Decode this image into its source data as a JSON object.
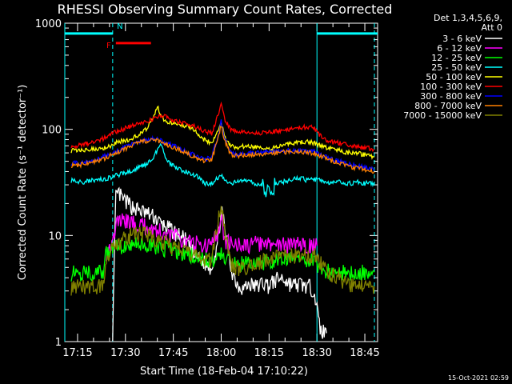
{
  "chart_data": {
    "type": "line",
    "title": "RHESSI Observing Summary Count Rates, Corrected",
    "xlabel": "Start Time (18-Feb-04 17:10:22)",
    "ylabel": "Corrected Count Rate (s⁻¹ detector⁻¹)",
    "yscale": "log",
    "ylim": [
      1,
      1000
    ],
    "xlim_min": [
      -2,
      48
    ],
    "y_ticks": [
      {
        "value": 1,
        "label": "1"
      },
      {
        "value": 10,
        "label": "10"
      },
      {
        "value": 100,
        "label": "100"
      },
      {
        "value": 1000,
        "label": "1000"
      }
    ],
    "x_ticks": [
      {
        "value": 2,
        "label": "17:15"
      },
      {
        "value": 17,
        "label": "17:30"
      },
      {
        "value": 32,
        "label": "17:45"
      },
      {
        "value": 47,
        "label": "18:00"
      },
      {
        "value": 62,
        "label": "18:15"
      },
      {
        "value": 77,
        "label": "18:30"
      },
      {
        "value": 92,
        "label": "18:45"
      }
    ],
    "x_range": [
      -2,
      96
    ],
    "legend_header": [
      "Det 1,3,4,5,6,9,",
      "Att 0"
    ],
    "legend_position": "right",
    "timestamp": "15-Oct-2021 02:59",
    "status_bars": [
      {
        "label": "",
        "start": -2,
        "end": 13,
        "level": 800,
        "color": "#00ffff"
      },
      {
        "label": "N",
        "start": 13,
        "end": 13,
        "level": 800,
        "color": "#00ffff"
      },
      {
        "label": "",
        "start": 77,
        "end": 96,
        "level": 800,
        "color": "#00ffff"
      },
      {
        "label": "F",
        "start": 14,
        "end": 25,
        "level": 650,
        "color": "#ff0000"
      }
    ],
    "vlines": [
      {
        "x": -2,
        "style": "solid"
      },
      {
        "x": 13,
        "style": "dashed"
      },
      {
        "x": 77,
        "style": "solid"
      },
      {
        "x": 95,
        "style": "dashed"
      }
    ],
    "series": [
      {
        "name": "3 - 6 keV",
        "color": "#ffffff",
        "x": [
          13,
          14,
          15,
          16,
          18,
          20,
          22,
          24,
          26,
          28,
          30,
          32,
          34,
          36,
          38,
          40,
          42,
          44,
          46,
          47,
          48,
          50,
          52,
          54,
          56,
          58,
          60,
          62,
          64,
          66,
          68,
          70,
          72,
          74,
          76,
          78,
          80
        ],
        "y": [
          1.2,
          23,
          25,
          22,
          20,
          18,
          17,
          16,
          15,
          13,
          12,
          11,
          10,
          9,
          7,
          6,
          5.5,
          5,
          9,
          18,
          12,
          5,
          3.5,
          3.2,
          3.5,
          3.3,
          3.6,
          3.4,
          3.8,
          4,
          3.6,
          3.4,
          3.5,
          3.3,
          3.2,
          1.3,
          1.2
        ]
      },
      {
        "name": "6 - 12 keV",
        "color": "#ff00ff",
        "x": [
          11,
          12,
          13,
          14,
          16,
          18,
          20,
          22,
          24,
          26,
          28,
          30,
          32,
          34,
          36,
          38,
          40,
          42,
          44,
          46,
          47,
          48,
          50,
          52,
          54,
          56,
          58,
          60,
          62,
          64,
          66,
          68,
          70,
          72,
          74,
          76,
          77
        ],
        "y": [
          7,
          8,
          8.5,
          13,
          14,
          13.5,
          13,
          12.5,
          12,
          11.5,
          11,
          10.5,
          10,
          9.5,
          9,
          8.5,
          8.5,
          8,
          8,
          11,
          16,
          9,
          8.5,
          8.3,
          8.2,
          8,
          8.5,
          8.3,
          8.1,
          8.6,
          8.3,
          8,
          8.4,
          8.2,
          8.1,
          8,
          8
        ]
      },
      {
        "name": "12 - 25 keV",
        "color": "#00ff00",
        "x": [
          0,
          2,
          4,
          6,
          8,
          10,
          11,
          12,
          13,
          14,
          16,
          18,
          20,
          22,
          24,
          26,
          28,
          30,
          32,
          34,
          36,
          38,
          40,
          42,
          44,
          46,
          47,
          48,
          50,
          52,
          54,
          56,
          58,
          60,
          62,
          64,
          66,
          68,
          70,
          72,
          74,
          76,
          77,
          79,
          81,
          84,
          86,
          88,
          90,
          92,
          94,
          95
        ],
        "y": [
          4.5,
          4.5,
          4.5,
          4.5,
          4.5,
          4.5,
          7,
          7.2,
          7.5,
          8,
          8,
          8.2,
          8.3,
          8.2,
          8,
          7.8,
          7.6,
          7.5,
          7.3,
          7,
          6.8,
          6.5,
          6.2,
          6,
          5.8,
          6,
          7,
          6,
          5.5,
          5.5,
          5.5,
          5.5,
          5.6,
          5.7,
          5.6,
          6,
          6,
          6.2,
          6.3,
          6.1,
          6,
          6,
          4.8,
          4.7,
          4.6,
          4.5,
          4.5,
          4.5,
          4.5,
          4.5,
          4.5,
          4.5
        ]
      },
      {
        "name": "25 - 50 keV",
        "color": "#00ffff",
        "x": [
          0,
          2,
          4,
          6,
          8,
          10,
          12,
          14,
          16,
          18,
          20,
          22,
          24,
          26,
          27,
          28,
          29,
          30,
          32,
          34,
          36,
          38,
          40,
          42,
          44,
          46,
          47,
          48,
          50,
          52,
          54,
          56,
          58,
          60,
          62,
          64,
          66,
          68,
          70,
          72,
          74,
          76,
          78,
          80,
          82,
          84,
          86,
          88,
          90,
          92,
          94,
          95
        ],
        "y": [
          33,
          32,
          32,
          33,
          33,
          34,
          35,
          37,
          38,
          40,
          42,
          45,
          48,
          55,
          65,
          72,
          60,
          50,
          45,
          42,
          40,
          38,
          35,
          31,
          31,
          35,
          38,
          33,
          31,
          32,
          33,
          32,
          30,
          29,
          27,
          30,
          32,
          33,
          34,
          35,
          33,
          34,
          33,
          32,
          31,
          32,
          31,
          31,
          32,
          31,
          31,
          31
        ]
      },
      {
        "name": "50 - 100 keV",
        "color": "#ffff00",
        "x": [
          0,
          2,
          4,
          6,
          8,
          10,
          12,
          14,
          16,
          18,
          20,
          22,
          24,
          26,
          27,
          28,
          29,
          30,
          32,
          34,
          36,
          38,
          40,
          42,
          44,
          46,
          47,
          48,
          50,
          52,
          54,
          56,
          58,
          60,
          62,
          64,
          66,
          68,
          70,
          72,
          74,
          76,
          78,
          80,
          82,
          84,
          86,
          88,
          90,
          92,
          94,
          95
        ],
        "y": [
          63,
          63,
          64,
          65,
          66,
          67,
          70,
          75,
          78,
          80,
          85,
          92,
          105,
          135,
          165,
          140,
          125,
          118,
          115,
          112,
          108,
          104,
          90,
          78,
          75,
          98,
          118,
          85,
          70,
          68,
          69,
          70,
          68,
          66,
          65,
          67,
          70,
          72,
          74,
          76,
          76,
          75,
          70,
          67,
          65,
          63,
          61,
          60,
          59,
          58,
          56,
          55
        ]
      },
      {
        "name": "100 - 300 keV",
        "color": "#ff0000",
        "x": [
          0,
          2,
          4,
          6,
          8,
          10,
          12,
          14,
          16,
          18,
          20,
          22,
          24,
          26,
          28,
          30,
          32,
          34,
          36,
          38,
          40,
          42,
          44,
          46,
          47,
          48,
          50,
          52,
          54,
          56,
          58,
          60,
          62,
          64,
          66,
          68,
          70,
          72,
          74,
          76,
          78,
          80,
          82,
          84,
          86,
          88,
          90,
          92,
          94,
          95
        ],
        "y": [
          70,
          70,
          72,
          75,
          78,
          82,
          88,
          95,
          100,
          105,
          110,
          115,
          120,
          128,
          135,
          130,
          122,
          117,
          112,
          108,
          102,
          96,
          92,
          135,
          175,
          125,
          100,
          96,
          94,
          93,
          92,
          92,
          93,
          96,
          98,
          100,
          102,
          104,
          105,
          104,
          88,
          80,
          76,
          74,
          72,
          70,
          68,
          67,
          66,
          65
        ]
      },
      {
        "name": "300 - 800 keV",
        "color": "#0000ff",
        "x": [
          0,
          2,
          4,
          6,
          8,
          10,
          12,
          14,
          16,
          18,
          20,
          22,
          24,
          26,
          28,
          30,
          32,
          34,
          36,
          38,
          40,
          42,
          44,
          46,
          47,
          48,
          50,
          52,
          54,
          56,
          58,
          60,
          62,
          64,
          66,
          68,
          70,
          72,
          74,
          76,
          78,
          80,
          82,
          84,
          86,
          88,
          90,
          92,
          94,
          95
        ],
        "y": [
          48,
          48,
          49,
          50,
          52,
          55,
          58,
          62,
          66,
          70,
          75,
          78,
          80,
          82,
          78,
          74,
          70,
          66,
          62,
          58,
          54,
          52,
          55,
          85,
          120,
          85,
          60,
          58,
          59,
          60,
          60,
          61,
          62,
          62,
          63,
          63,
          63,
          63,
          62,
          62,
          58,
          55,
          52,
          50,
          48,
          46,
          45,
          44,
          43,
          42
        ]
      },
      {
        "name": "800 - 7000 keV",
        "color": "#ff8000",
        "x": [
          0,
          2,
          4,
          6,
          8,
          10,
          12,
          14,
          16,
          18,
          20,
          22,
          24,
          26,
          28,
          30,
          32,
          34,
          36,
          38,
          40,
          42,
          44,
          46,
          47,
          48,
          50,
          52,
          54,
          56,
          58,
          60,
          62,
          64,
          66,
          68,
          70,
          72,
          74,
          76,
          78,
          80,
          82,
          84,
          86,
          88,
          90,
          92,
          94,
          95
        ],
        "y": [
          46,
          46,
          47,
          48,
          50,
          52,
          56,
          60,
          64,
          68,
          72,
          76,
          78,
          80,
          76,
          72,
          68,
          64,
          60,
          56,
          52,
          50,
          52,
          80,
          110,
          80,
          58,
          56,
          57,
          58,
          58,
          59,
          60,
          60,
          61,
          61,
          61,
          61,
          60,
          60,
          56,
          53,
          50,
          48,
          46,
          44,
          43,
          42,
          41,
          40
        ]
      },
      {
        "name": "7000 - 15000 keV",
        "color": "#808000",
        "x": [
          0,
          2,
          4,
          6,
          8,
          10,
          11,
          12,
          13,
          14,
          16,
          18,
          20,
          22,
          24,
          26,
          28,
          30,
          32,
          34,
          36,
          38,
          40,
          42,
          44,
          46,
          47,
          48,
          50,
          52,
          54,
          56,
          58,
          60,
          62,
          64,
          66,
          68,
          70,
          72,
          74,
          76,
          77,
          79,
          81,
          84,
          86,
          88,
          90,
          92,
          94,
          95
        ],
        "y": [
          3.3,
          3.3,
          3.3,
          3.3,
          3.3,
          3.3,
          6.5,
          7,
          7.5,
          8,
          9,
          10,
          10.5,
          10.5,
          10,
          9.5,
          9,
          8.5,
          8,
          7.5,
          7,
          6.5,
          6.2,
          6,
          5.8,
          14,
          20,
          12,
          5.5,
          5,
          5,
          5.2,
          5.5,
          5.8,
          6,
          6.2,
          6.3,
          6.5,
          6.5,
          6.6,
          6.5,
          6.5,
          6.5,
          5,
          4.5,
          4,
          3.6,
          3.5,
          3.4,
          3.3,
          3.3,
          3.3
        ]
      }
    ]
  }
}
